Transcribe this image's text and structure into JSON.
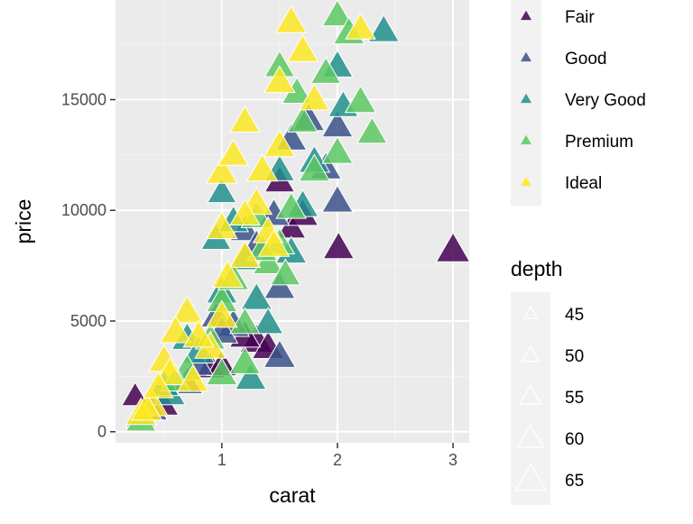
{
  "chart_data": {
    "type": "scatter",
    "title": "",
    "xlabel": "carat",
    "ylabel": "price",
    "xlim": [
      0.08,
      3.14
    ],
    "ylim": [
      -500,
      19500
    ],
    "x_ticks": [
      1,
      2,
      3
    ],
    "x_tick_labels": [
      "1",
      "2",
      "3"
    ],
    "y_ticks": [
      0,
      5000,
      10000,
      15000
    ],
    "y_tick_labels": [
      "0",
      "5000",
      "10000",
      "15000"
    ],
    "grid": true,
    "marker": "triangle",
    "background_color": "#ebebeb",
    "legend_position": "right",
    "color_legend": {
      "title": "",
      "entries": [
        {
          "label": "Fair",
          "color": "#440154"
        },
        {
          "label": "Good",
          "color": "#3b528b"
        },
        {
          "label": "Very Good",
          "color": "#21908c"
        },
        {
          "label": "Premium",
          "color": "#5dc863"
        },
        {
          "label": "Ideal",
          "color": "#fde725"
        }
      ]
    },
    "size_legend": {
      "title": "depth",
      "entries": [
        {
          "label": "45",
          "value": 45
        },
        {
          "label": "50",
          "value": 50
        },
        {
          "label": "55",
          "value": 55
        },
        {
          "label": "60",
          "value": 60
        },
        {
          "label": "65",
          "value": 65
        }
      ]
    },
    "series": [
      {
        "name": "Fair",
        "color": "#440154",
        "points": [
          [
            3.0,
            8200,
            65
          ],
          [
            2.01,
            8300,
            62
          ],
          [
            1.5,
            11300,
            61
          ],
          [
            0.25,
            1600,
            58
          ],
          [
            1.3,
            4100,
            64
          ],
          [
            1.4,
            3800,
            63
          ],
          [
            0.9,
            2900,
            61
          ],
          [
            1.6,
            9200,
            60
          ],
          [
            1.2,
            4300,
            62
          ],
          [
            0.5,
            1200,
            60
          ],
          [
            1.0,
            3000,
            61
          ],
          [
            1.7,
            9800,
            62
          ]
        ]
      },
      {
        "name": "Good",
        "color": "#3b528b",
        "points": [
          [
            1.5,
            3400,
            63
          ],
          [
            2.0,
            13800,
            62
          ],
          [
            1.6,
            13200,
            62
          ],
          [
            1.2,
            9100,
            61
          ],
          [
            1.3,
            8400,
            62
          ],
          [
            1.5,
            6500,
            62
          ],
          [
            0.95,
            5200,
            61
          ],
          [
            1.1,
            4800,
            63
          ],
          [
            1.75,
            14100,
            63
          ],
          [
            1.0,
            4500,
            63
          ],
          [
            0.8,
            3000,
            60
          ],
          [
            1.45,
            9800,
            62
          ],
          [
            2.0,
            10400,
            62
          ],
          [
            1.9,
            11900,
            62
          ],
          [
            0.4,
            1000,
            61
          ],
          [
            0.7,
            2200,
            62
          ]
        ]
      },
      {
        "name": "Very Good",
        "color": "#21908c",
        "points": [
          [
            2.4,
            18100,
            62
          ],
          [
            2.0,
            16500,
            62
          ],
          [
            1.5,
            11800,
            61
          ],
          [
            1.0,
            6300,
            62
          ],
          [
            1.2,
            7800,
            62
          ],
          [
            0.95,
            8700,
            61
          ],
          [
            1.0,
            10800,
            60
          ],
          [
            0.7,
            4200,
            62
          ],
          [
            0.3,
            700,
            61
          ],
          [
            1.6,
            8100,
            62
          ],
          [
            1.8,
            12200,
            62
          ],
          [
            1.1,
            9500,
            61
          ],
          [
            1.3,
            6000,
            62
          ],
          [
            0.55,
            1700,
            62
          ],
          [
            0.8,
            3600,
            63
          ],
          [
            1.4,
            4900,
            61
          ],
          [
            2.05,
            14700,
            61
          ],
          [
            1.25,
            2400,
            62
          ],
          [
            1.7,
            10200,
            62
          ],
          [
            0.5,
            2100,
            61
          ]
        ]
      },
      {
        "name": "Premium",
        "color": "#5dc863",
        "points": [
          [
            2.0,
            18800,
            61
          ],
          [
            2.1,
            18000,
            62
          ],
          [
            1.5,
            16500,
            61
          ],
          [
            1.7,
            14000,
            61
          ],
          [
            2.2,
            14900,
            62
          ],
          [
            1.3,
            9700,
            62
          ],
          [
            1.5,
            8500,
            61
          ],
          [
            1.0,
            5900,
            62
          ],
          [
            1.4,
            7600,
            61
          ],
          [
            1.6,
            10100,
            61
          ],
          [
            2.3,
            13500,
            61
          ],
          [
            1.1,
            6900,
            62
          ],
          [
            0.9,
            4200,
            61
          ],
          [
            1.8,
            11800,
            62
          ],
          [
            1.2,
            4900,
            61
          ],
          [
            1.0,
            2600,
            62
          ],
          [
            0.7,
            2800,
            61
          ],
          [
            1.9,
            16200,
            61
          ],
          [
            2.0,
            12600,
            62
          ],
          [
            1.35,
            8200,
            61
          ],
          [
            1.55,
            7100,
            61
          ],
          [
            0.6,
            2300,
            61
          ],
          [
            1.2,
            3100,
            62
          ],
          [
            1.65,
            15300,
            61
          ],
          [
            0.3,
            500,
            61
          ]
        ]
      },
      {
        "name": "Ideal",
        "color": "#fde725",
        "points": [
          [
            1.6,
            18500,
            62
          ],
          [
            1.7,
            17200,
            62
          ],
          [
            2.2,
            18200,
            61
          ],
          [
            1.2,
            14000,
            61
          ],
          [
            1.5,
            15800,
            62
          ],
          [
            1.0,
            11700,
            62
          ],
          [
            1.1,
            12500,
            61
          ],
          [
            1.3,
            10300,
            62
          ],
          [
            0.7,
            5400,
            62
          ],
          [
            0.6,
            4500,
            62
          ],
          [
            0.5,
            3200,
            62
          ],
          [
            0.4,
            1200,
            62
          ],
          [
            0.3,
            800,
            62
          ],
          [
            1.2,
            7900,
            62
          ],
          [
            1.4,
            9000,
            61
          ],
          [
            0.9,
            3800,
            62
          ],
          [
            1.0,
            5200,
            62
          ],
          [
            0.8,
            4300,
            62
          ],
          [
            1.05,
            7000,
            62
          ],
          [
            1.8,
            15000,
            61
          ],
          [
            0.55,
            2600,
            62
          ],
          [
            0.35,
            1000,
            62
          ],
          [
            1.35,
            11800,
            62
          ],
          [
            1.5,
            12900,
            62
          ],
          [
            1.2,
            9800,
            61
          ],
          [
            0.75,
            2300,
            62
          ],
          [
            1.0,
            9200,
            62
          ],
          [
            1.45,
            8400,
            62
          ],
          [
            0.45,
            2000,
            61
          ]
        ]
      }
    ]
  }
}
